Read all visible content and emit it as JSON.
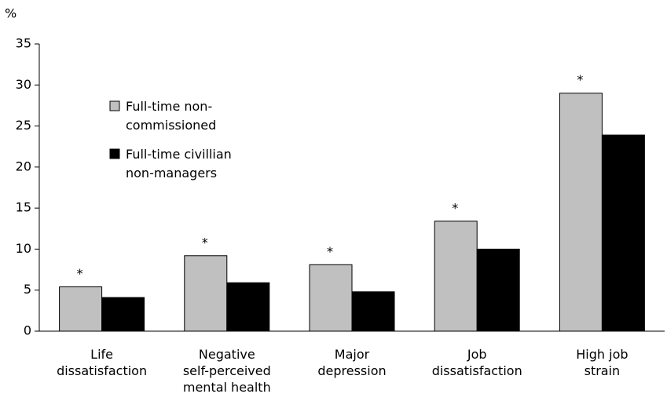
{
  "chart_data": {
    "type": "bar",
    "y_label": "%",
    "categories": [
      [
        "Life",
        "dissatisfaction"
      ],
      [
        "Negative",
        "self-perceived",
        "mental health"
      ],
      [
        "Major",
        "depression"
      ],
      [
        "Job",
        "dissatisfaction"
      ],
      [
        "High job",
        "strain"
      ]
    ],
    "series": [
      {
        "name": [
          "Full-time non-",
          "commissioned"
        ],
        "color": "#c0c0c0",
        "values": [
          5.4,
          9.2,
          8.1,
          13.4,
          29.0
        ]
      },
      {
        "name": [
          "Full-time civillian",
          "non-managers"
        ],
        "color": "#000000",
        "values": [
          4.1,
          5.9,
          4.8,
          10.0,
          23.9
        ]
      }
    ],
    "significance_marks": [
      "*",
      "*",
      "*",
      "*",
      "*"
    ],
    "ylim": [
      0,
      35
    ],
    "yticks": [
      0,
      5,
      10,
      15,
      20,
      25,
      30,
      35
    ],
    "grid": false,
    "legend": "upper-left"
  }
}
